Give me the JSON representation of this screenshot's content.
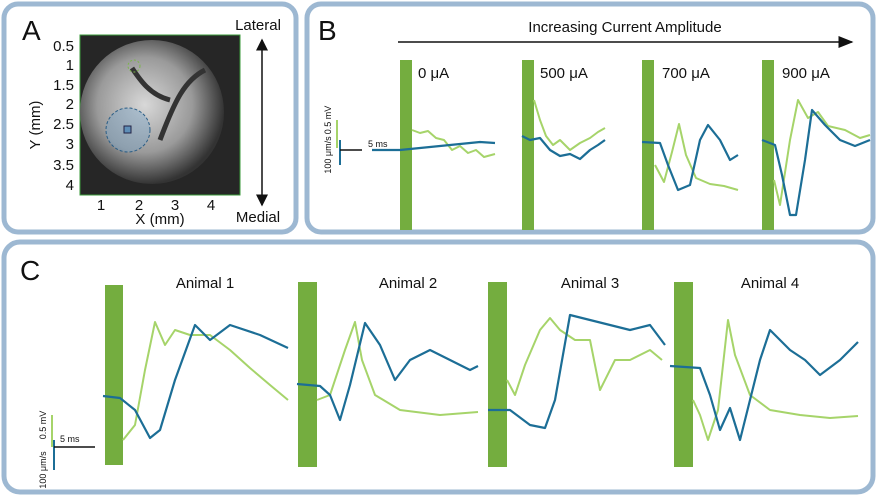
{
  "panel_a": {
    "label": "A",
    "y_axis_label": "Y (mm)",
    "x_axis_label": "X (mm)",
    "y_ticks": [
      "0.5",
      "1",
      "1.5",
      "2",
      "2.5",
      "3",
      "3.5",
      "4"
    ],
    "x_ticks": [
      "1",
      "2",
      "3",
      "4"
    ],
    "top_label": "Lateral",
    "bottom_label": "Medial"
  },
  "panel_b": {
    "label": "B",
    "title": "Increasing Current Amplitude",
    "conditions": [
      "0 μA",
      "500 μA",
      "700 μA",
      "900 μA"
    ],
    "scale": {
      "velocity": "100 μm/s",
      "voltage": "0.5 mV",
      "time": "5 ms"
    }
  },
  "panel_c": {
    "label": "C",
    "animals": [
      "Animal 1",
      "Animal 2",
      "Animal 3",
      "Animal 4"
    ],
    "scale": {
      "velocity": "100 μm/s",
      "voltage": "0.5 mV",
      "time": "5 ms"
    }
  }
}
